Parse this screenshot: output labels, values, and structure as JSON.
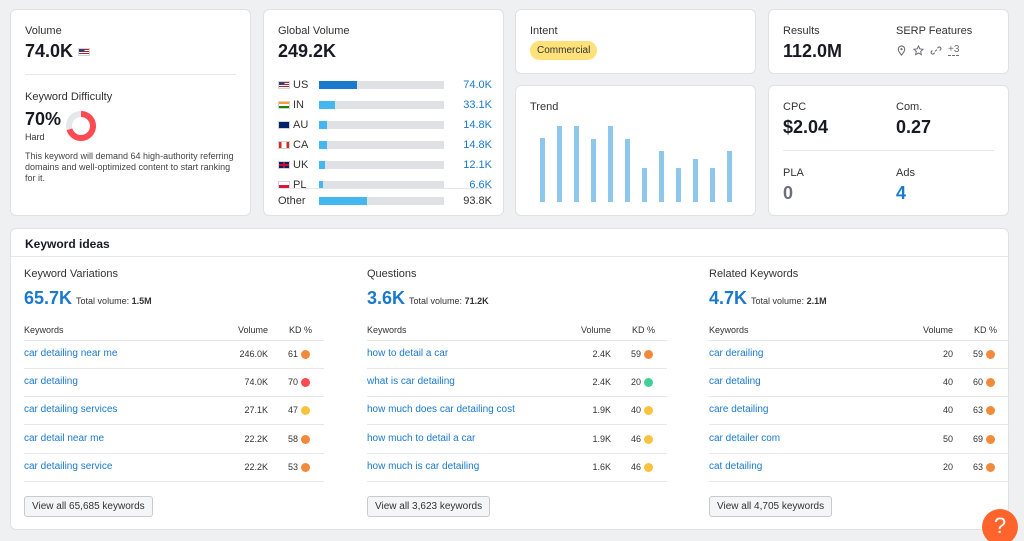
{
  "volume": {
    "label": "Volume",
    "value": "74.0K"
  },
  "difficulty": {
    "label": "Keyword Difficulty",
    "percent": "70%",
    "percent_num": 70,
    "level": "Hard",
    "description": "This keyword will demand 64 high-authority referring domains and well-optimized content to start ranking for it.",
    "color": "#ff4953"
  },
  "global": {
    "label": "Global Volume",
    "value": "249.2K",
    "countries": [
      {
        "code": "US",
        "flag": "us",
        "value": "74.0K",
        "share": 0.3
      },
      {
        "code": "IN",
        "flag": "in",
        "value": "33.1K",
        "share": 0.13
      },
      {
        "code": "AU",
        "flag": "au",
        "value": "14.8K",
        "share": 0.06
      },
      {
        "code": "CA",
        "flag": "ca",
        "value": "14.8K",
        "share": 0.06
      },
      {
        "code": "UK",
        "flag": "uk",
        "value": "12.1K",
        "share": 0.05
      },
      {
        "code": "PL",
        "flag": "pl",
        "value": "6.6K",
        "share": 0.03
      }
    ],
    "other": {
      "label": "Other",
      "value": "93.8K",
      "share": 0.38
    }
  },
  "intent": {
    "label": "Intent",
    "badge": "Commercial",
    "badge_color": "#ffe17a"
  },
  "trend": {
    "label": "Trend",
    "values": [
      0.84,
      1.0,
      1.0,
      0.83,
      1.0,
      0.83,
      0.45,
      0.67,
      0.45,
      0.56,
      0.45,
      0.67
    ]
  },
  "results": {
    "label": "Results",
    "value": "112.0M",
    "serp_label": "SERP Features",
    "serp_icons": [
      "location-pin-icon",
      "star-icon",
      "link-icon"
    ],
    "serp_more": "+3"
  },
  "metrics": {
    "cpc_label": "CPC",
    "cpc": "$2.04",
    "com_label": "Com.",
    "com": "0.27",
    "pla_label": "PLA",
    "pla": "0",
    "ads_label": "Ads",
    "ads": "4"
  },
  "ideas": {
    "title": "Keyword ideas",
    "columns": [
      {
        "title": "Keyword Variations",
        "count": "65.7K",
        "total_label": "Total volume:",
        "total": "1.5M",
        "headers": {
          "keywords": "Keywords",
          "volume": "Volume",
          "kd": "KD %"
        },
        "rows": [
          {
            "kw": "car detailing near me",
            "vol": "246.0K",
            "kd": "61",
            "color": "#f28a3c"
          },
          {
            "kw": "car detailing",
            "vol": "74.0K",
            "kd": "70",
            "color": "#ff4953"
          },
          {
            "kw": "car detailing services",
            "vol": "27.1K",
            "kd": "47",
            "color": "#fdc23c"
          },
          {
            "kw": "car detail near me",
            "vol": "22.2K",
            "kd": "58",
            "color": "#f28a3c"
          },
          {
            "kw": "car detailing service",
            "vol": "22.2K",
            "kd": "53",
            "color": "#f28a3c"
          }
        ],
        "view_all": "View all 65,685 keywords"
      },
      {
        "title": "Questions",
        "count": "3.6K",
        "total_label": "Total volume:",
        "total": "71.2K",
        "headers": {
          "keywords": "Keywords",
          "volume": "Volume",
          "kd": "KD %"
        },
        "rows": [
          {
            "kw": "how to detail a car",
            "vol": "2.4K",
            "kd": "59",
            "color": "#f28a3c"
          },
          {
            "kw": "what is car detailing",
            "vol": "2.4K",
            "kd": "20",
            "color": "#3fd098"
          },
          {
            "kw": "how much does car detailing cost",
            "vol": "1.9K",
            "kd": "40",
            "color": "#fdc23c"
          },
          {
            "kw": "how much to detail a car",
            "vol": "1.9K",
            "kd": "46",
            "color": "#fdc23c"
          },
          {
            "kw": "how much is car detailing",
            "vol": "1.6K",
            "kd": "46",
            "color": "#fdc23c"
          }
        ],
        "view_all": "View all 3,623 keywords"
      },
      {
        "title": "Related Keywords",
        "count": "4.7K",
        "total_label": "Total volume:",
        "total": "2.1M",
        "headers": {
          "keywords": "Keywords",
          "volume": "Volume",
          "kd": "KD %"
        },
        "rows": [
          {
            "kw": "car derailing",
            "vol": "20",
            "kd": "59",
            "color": "#f28a3c"
          },
          {
            "kw": "car detaling",
            "vol": "40",
            "kd": "60",
            "color": "#f28a3c"
          },
          {
            "kw": "care detailing",
            "vol": "40",
            "kd": "63",
            "color": "#f28a3c"
          },
          {
            "kw": "car detailer com",
            "vol": "50",
            "kd": "69",
            "color": "#f28a3c"
          },
          {
            "kw": "cat detailing",
            "vol": "20",
            "kd": "63",
            "color": "#f28a3c"
          }
        ],
        "view_all": "View all 4,705 keywords"
      }
    ]
  },
  "help": {
    "label": "?"
  }
}
